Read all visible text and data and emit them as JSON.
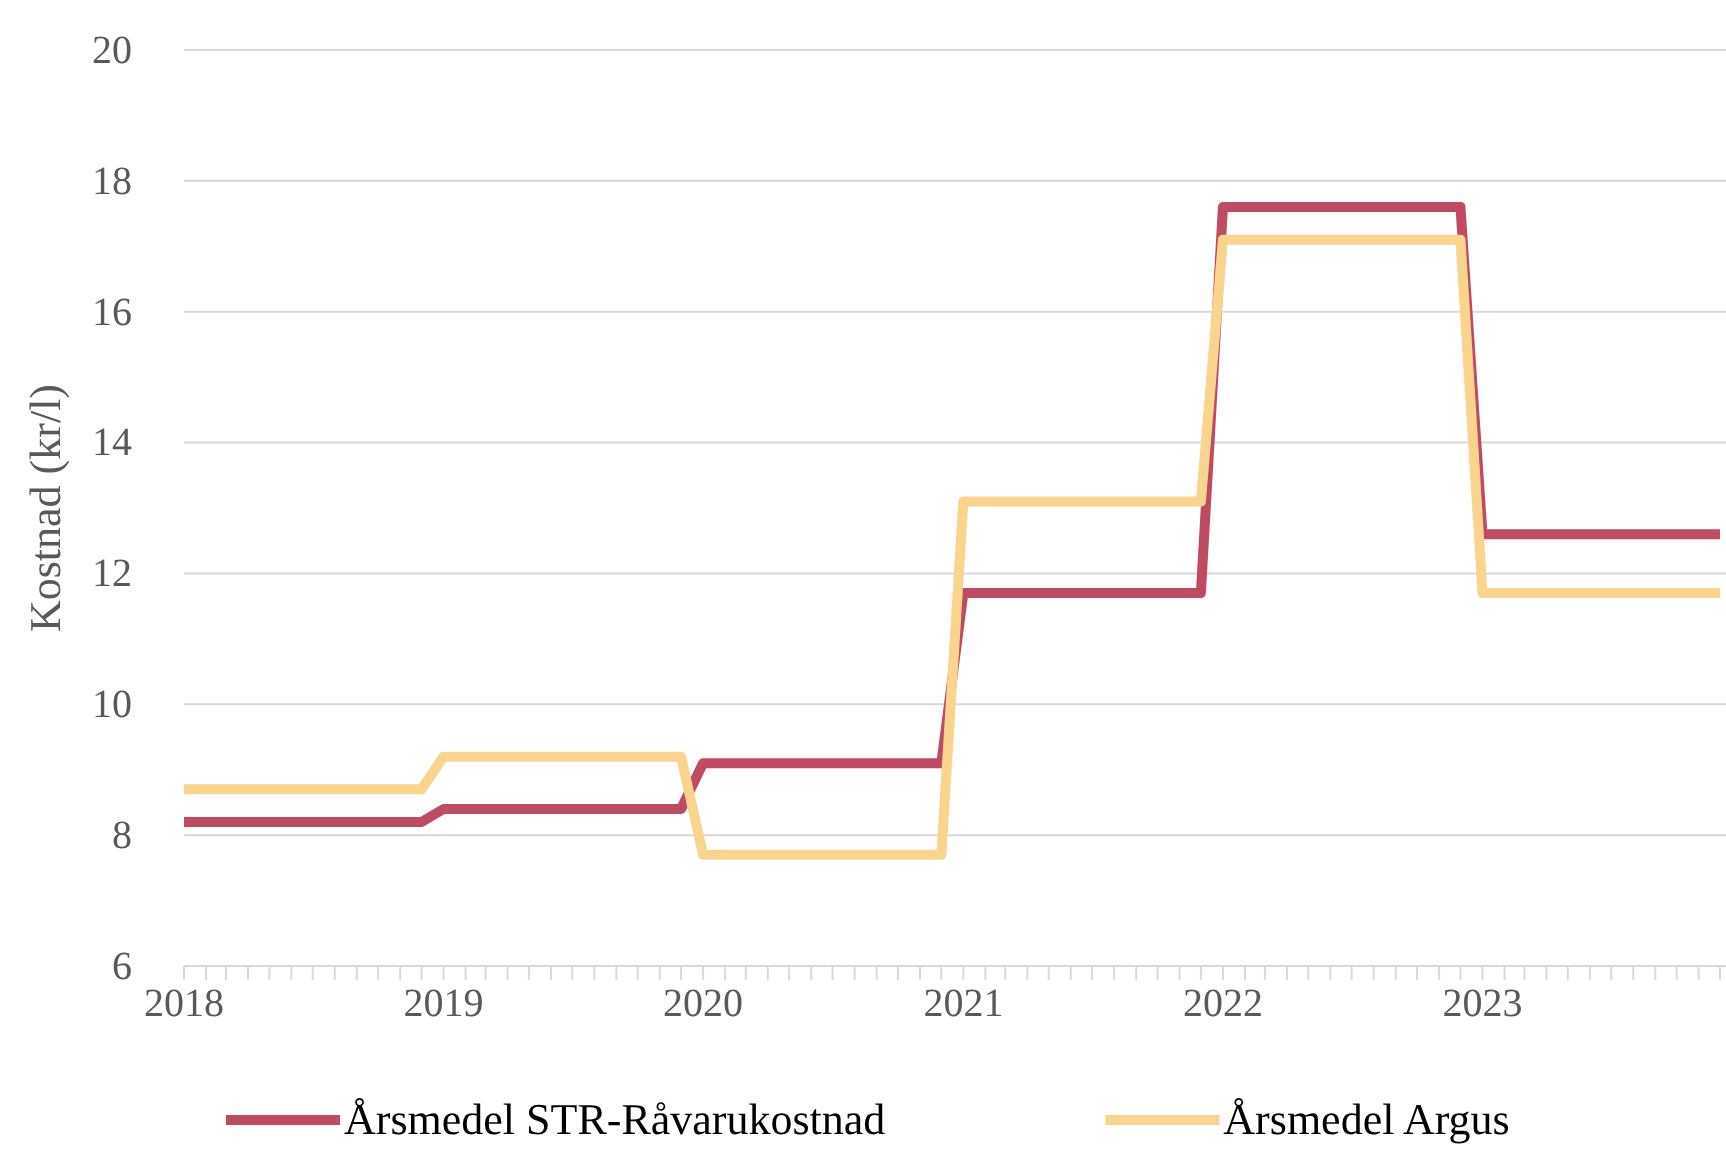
{
  "chart_data": {
    "type": "line",
    "ylabel": "Kostnad (kr/l)",
    "xlim": [
      "2018-01",
      "2023-12"
    ],
    "ylim": [
      6,
      20
    ],
    "yticks": [
      6,
      8,
      10,
      12,
      14,
      16,
      18,
      20
    ],
    "xticks": [
      {
        "value": "2018-01",
        "label": "2018"
      },
      {
        "value": "2018-02",
        "label": null
      },
      {
        "value": "2018-03",
        "label": null
      },
      {
        "value": "2018-04",
        "label": null
      },
      {
        "value": "2018-05",
        "label": null
      },
      {
        "value": "2018-06",
        "label": null
      },
      {
        "value": "2018-07",
        "label": null
      },
      {
        "value": "2018-08",
        "label": null
      },
      {
        "value": "2018-09",
        "label": null
      },
      {
        "value": "2018-10",
        "label": null
      },
      {
        "value": "2018-11",
        "label": null
      },
      {
        "value": "2018-12",
        "label": null
      },
      {
        "value": "2019-01",
        "label": "2019"
      },
      {
        "value": "2019-02",
        "label": null
      },
      {
        "value": "2019-03",
        "label": null
      },
      {
        "value": "2019-04",
        "label": null
      },
      {
        "value": "2019-05",
        "label": null
      },
      {
        "value": "2019-06",
        "label": null
      },
      {
        "value": "2019-07",
        "label": null
      },
      {
        "value": "2019-08",
        "label": null
      },
      {
        "value": "2019-09",
        "label": null
      },
      {
        "value": "2019-10",
        "label": null
      },
      {
        "value": "2019-11",
        "label": null
      },
      {
        "value": "2019-12",
        "label": null
      },
      {
        "value": "2020-01",
        "label": "2020"
      },
      {
        "value": "2020-02",
        "label": null
      },
      {
        "value": "2020-03",
        "label": null
      },
      {
        "value": "2020-04",
        "label": null
      },
      {
        "value": "2020-05",
        "label": null
      },
      {
        "value": "2020-06",
        "label": null
      },
      {
        "value": "2020-07",
        "label": null
      },
      {
        "value": "2020-08",
        "label": null
      },
      {
        "value": "2020-09",
        "label": null
      },
      {
        "value": "2020-10",
        "label": null
      },
      {
        "value": "2020-11",
        "label": null
      },
      {
        "value": "2020-12",
        "label": null
      },
      {
        "value": "2021-01",
        "label": "2021"
      },
      {
        "value": "2021-02",
        "label": null
      },
      {
        "value": "2021-03",
        "label": null
      },
      {
        "value": "2021-04",
        "label": null
      },
      {
        "value": "2021-05",
        "label": null
      },
      {
        "value": "2021-06",
        "label": null
      },
      {
        "value": "2021-07",
        "label": null
      },
      {
        "value": "2021-08",
        "label": null
      },
      {
        "value": "2021-09",
        "label": null
      },
      {
        "value": "2021-10",
        "label": null
      },
      {
        "value": "2021-11",
        "label": null
      },
      {
        "value": "2021-12",
        "label": null
      },
      {
        "value": "2022-01",
        "label": "2022"
      },
      {
        "value": "2022-02",
        "label": null
      },
      {
        "value": "2022-03",
        "label": null
      },
      {
        "value": "2022-04",
        "label": null
      },
      {
        "value": "2022-05",
        "label": null
      },
      {
        "value": "2022-06",
        "label": null
      },
      {
        "value": "2022-07",
        "label": null
      },
      {
        "value": "2022-08",
        "label": null
      },
      {
        "value": "2022-09",
        "label": null
      },
      {
        "value": "2022-10",
        "label": null
      },
      {
        "value": "2022-11",
        "label": null
      },
      {
        "value": "2022-12",
        "label": null
      },
      {
        "value": "2023-01",
        "label": "2023"
      },
      {
        "value": "2023-02",
        "label": null
      },
      {
        "value": "2023-03",
        "label": null
      },
      {
        "value": "2023-04",
        "label": null
      },
      {
        "value": "2023-05",
        "label": null
      },
      {
        "value": "2023-06",
        "label": null
      },
      {
        "value": "2023-07",
        "label": null
      },
      {
        "value": "2023-08",
        "label": null
      },
      {
        "value": "2023-09",
        "label": null
      },
      {
        "value": "2023-10",
        "label": null
      },
      {
        "value": "2023-11",
        "label": null
      },
      {
        "value": "2023-12",
        "label": null
      }
    ],
    "grid": "y",
    "legend": "bottom",
    "marker": "none",
    "line_style": "solid",
    "x": [
      "2018-01",
      "2018-12",
      "2019-01",
      "2019-12",
      "2020-01",
      "2020-12",
      "2021-01",
      "2021-12",
      "2022-01",
      "2022-12",
      "2023-01",
      "2023-12"
    ],
    "series": [
      {
        "name": "Årsmedel STR-Råvarukostnad",
        "color": "#be4b62",
        "values": [
          8.2,
          8.2,
          8.4,
          8.4,
          9.1,
          9.1,
          11.7,
          11.7,
          17.6,
          17.6,
          12.6,
          12.6
        ]
      },
      {
        "name": "Årsmedel Argus",
        "color": "#f9d48f",
        "values": [
          8.7,
          8.7,
          9.2,
          9.2,
          7.7,
          7.7,
          13.1,
          13.1,
          17.1,
          17.1,
          11.7,
          11.7
        ]
      }
    ]
  }
}
